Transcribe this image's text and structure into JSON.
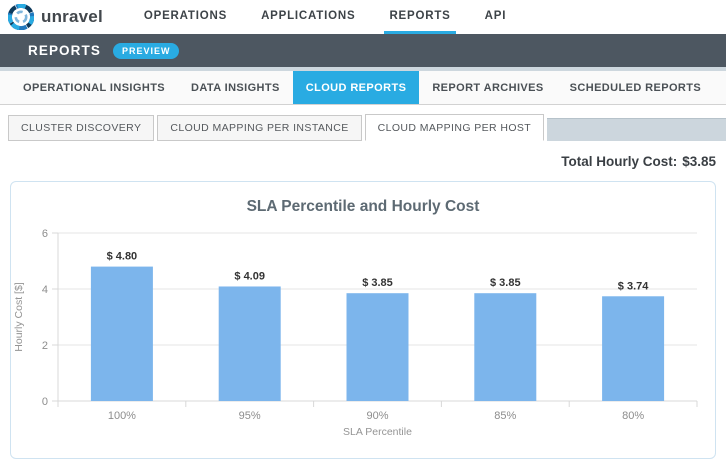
{
  "header": {
    "brand": "unravel",
    "nav": [
      {
        "label": "OPERATIONS",
        "active": false
      },
      {
        "label": "APPLICATIONS",
        "active": false
      },
      {
        "label": "REPORTS",
        "active": true
      },
      {
        "label": "API",
        "active": false
      }
    ]
  },
  "reports_bar": {
    "title": "REPORTS",
    "badge": "PREVIEW"
  },
  "main_tabs": [
    {
      "label": "OPERATIONAL INSIGHTS",
      "active": false
    },
    {
      "label": "DATA INSIGHTS",
      "active": false
    },
    {
      "label": "CLOUD REPORTS",
      "active": true
    },
    {
      "label": "REPORT ARCHIVES",
      "active": false
    },
    {
      "label": "SCHEDULED REPORTS",
      "active": false
    }
  ],
  "sub_tabs": [
    {
      "label": "CLUSTER DISCOVERY",
      "active": false
    },
    {
      "label": "CLOUD MAPPING PER INSTANCE",
      "active": false
    },
    {
      "label": "CLOUD MAPPING PER HOST",
      "active": true
    }
  ],
  "summary": {
    "label": "Total Hourly Cost:",
    "value": "$3.85"
  },
  "chart_data": {
    "type": "bar",
    "title": "SLA Percentile and Hourly Cost",
    "categories": [
      "100%",
      "95%",
      "90%",
      "85%",
      "80%"
    ],
    "values": [
      4.8,
      4.09,
      3.85,
      3.85,
      3.74
    ],
    "data_labels": [
      "$ 4.80",
      "$ 4.09",
      "$ 3.85",
      "$ 3.85",
      "$ 3.74"
    ],
    "xlabel": "SLA Percentile",
    "ylabel": "Hourly Cost [$]",
    "ylim": [
      0,
      6
    ],
    "yticks": [
      0,
      2,
      4,
      6
    ],
    "bar_color": "#7cb5ec",
    "grid": true,
    "legend": "none"
  },
  "colors": {
    "accent": "#29abe2",
    "dark_bar": "#4d5761",
    "panel_border": "#cfe3f1",
    "grid_line": "#e6e6e6",
    "axis_line": "#d8d8d8",
    "tick_label": "#8d8d8d",
    "data_label": "#333333"
  }
}
